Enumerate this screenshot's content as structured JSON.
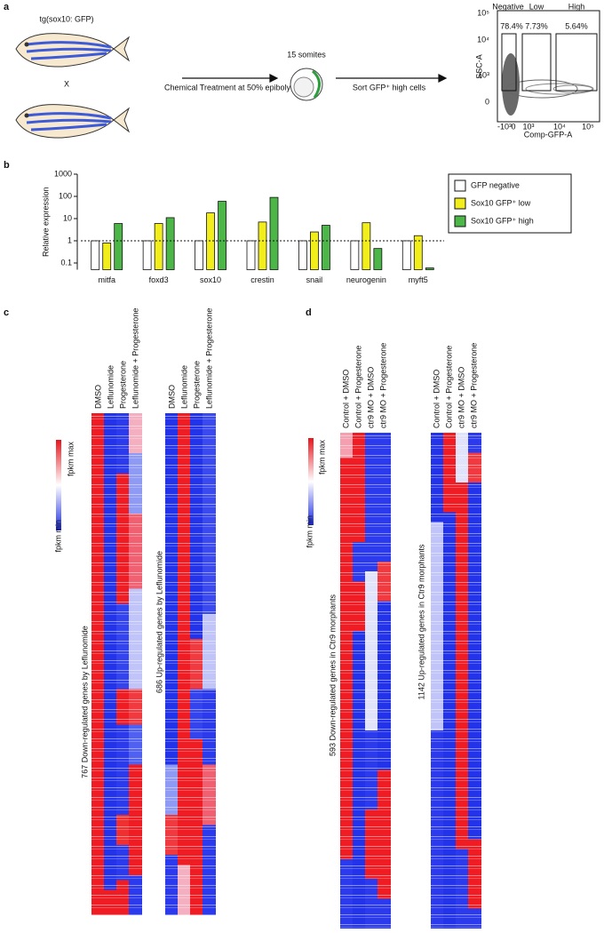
{
  "panel_labels": [
    "a",
    "b",
    "c",
    "d"
  ],
  "panel_a": {
    "strain": "tg(sox10: GFP)",
    "cross": "X",
    "treatment": "Chemical Treatment at 50% epiboly",
    "stage": "15 somites",
    "sort": "Sort GFP⁺ high cells",
    "flow": {
      "gates": [
        "Negative",
        "Low",
        "High"
      ],
      "percents": [
        "78.4%",
        "7.73%",
        "5.64%"
      ],
      "y_label": "SSC-A",
      "x_label": "Comp-GFP-A",
      "y_tick_labels": [
        "10⁵",
        "10⁴",
        "10³",
        "0"
      ],
      "x_tick_labels": [
        "-10³",
        "0",
        "10³",
        "10⁴",
        "10⁵"
      ]
    }
  },
  "chart_data": {
    "type": "bar",
    "y_label": "Relative expression",
    "log_scale": true,
    "categories": [
      "mitfa",
      "foxd3",
      "sox10",
      "crestin",
      "snail",
      "neurogenin",
      "myft5"
    ],
    "series": [
      {
        "name": "GFP negative",
        "color": "#ffffff",
        "values": [
          1,
          1,
          1,
          1,
          1,
          1,
          1
        ]
      },
      {
        "name": "Sox10 GFP⁺ low",
        "color": "#f2ee1c",
        "values": [
          0.8,
          6,
          18,
          7,
          2.5,
          6.5,
          1.7
        ]
      },
      {
        "name": "Sox10 GFP⁺ high",
        "color": "#4cb648",
        "values": [
          6,
          11,
          60,
          90,
          5,
          0.45,
          0.06
        ]
      }
    ],
    "ylim": [
      0.05,
      1000
    ],
    "yticks": [
      0.1,
      1,
      10,
      100,
      1000
    ],
    "reference_line": 1,
    "legend": "right"
  },
  "panel_c": {
    "columns": [
      "DMSO",
      "Leflunomide",
      "Progesterone",
      "Leflunomide + Progesterone"
    ],
    "down_label": "767 Down-regulated genes by Leflunomide",
    "up_label": "686 Up-regulated genes by Leflunomide",
    "scale_max": "fpkm max",
    "scale_min": "fpkm min"
  },
  "panel_d": {
    "columns": [
      "Control + DMSO",
      "Control + Progesterone",
      "ctr9 MO + DMSO",
      "ctr9 MO + Progesterone"
    ],
    "down_label": "593 Down-regulated genes in Ctr9 morphants",
    "up_label": "1142 Up-regulated genes in Ctr9 morphants",
    "scale_max": "fpkm max",
    "scale_min": "fpkm min"
  }
}
